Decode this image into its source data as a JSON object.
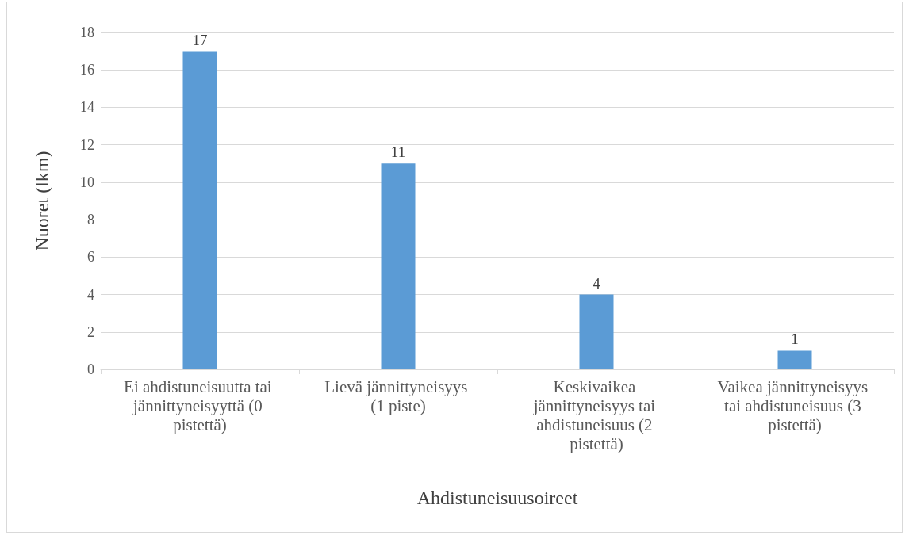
{
  "chart_data": {
    "type": "bar",
    "xlabel": "Ahdistuneisuusoireet",
    "ylabel": "Nuoret (lkm)",
    "categories": [
      "Ei ahdistuneisuutta tai jännittyneisyyttä (0 pistettä)",
      "Lievä jännittyneisyys (1 piste)",
      "Keskivaikea jännittyneisyys tai ahdistuneisuus (2 pistettä)",
      "Vaikea jännittyneisyys tai ahdistuneisuus (3 pistettä)"
    ],
    "values": [
      17,
      11,
      4,
      1
    ],
    "color": "#5b9bd5",
    "ylim": [
      0,
      18
    ],
    "yticks": [
      0,
      2,
      4,
      6,
      8,
      10,
      12,
      14,
      16,
      18
    ],
    "grid": "y",
    "data_labels": true
  }
}
